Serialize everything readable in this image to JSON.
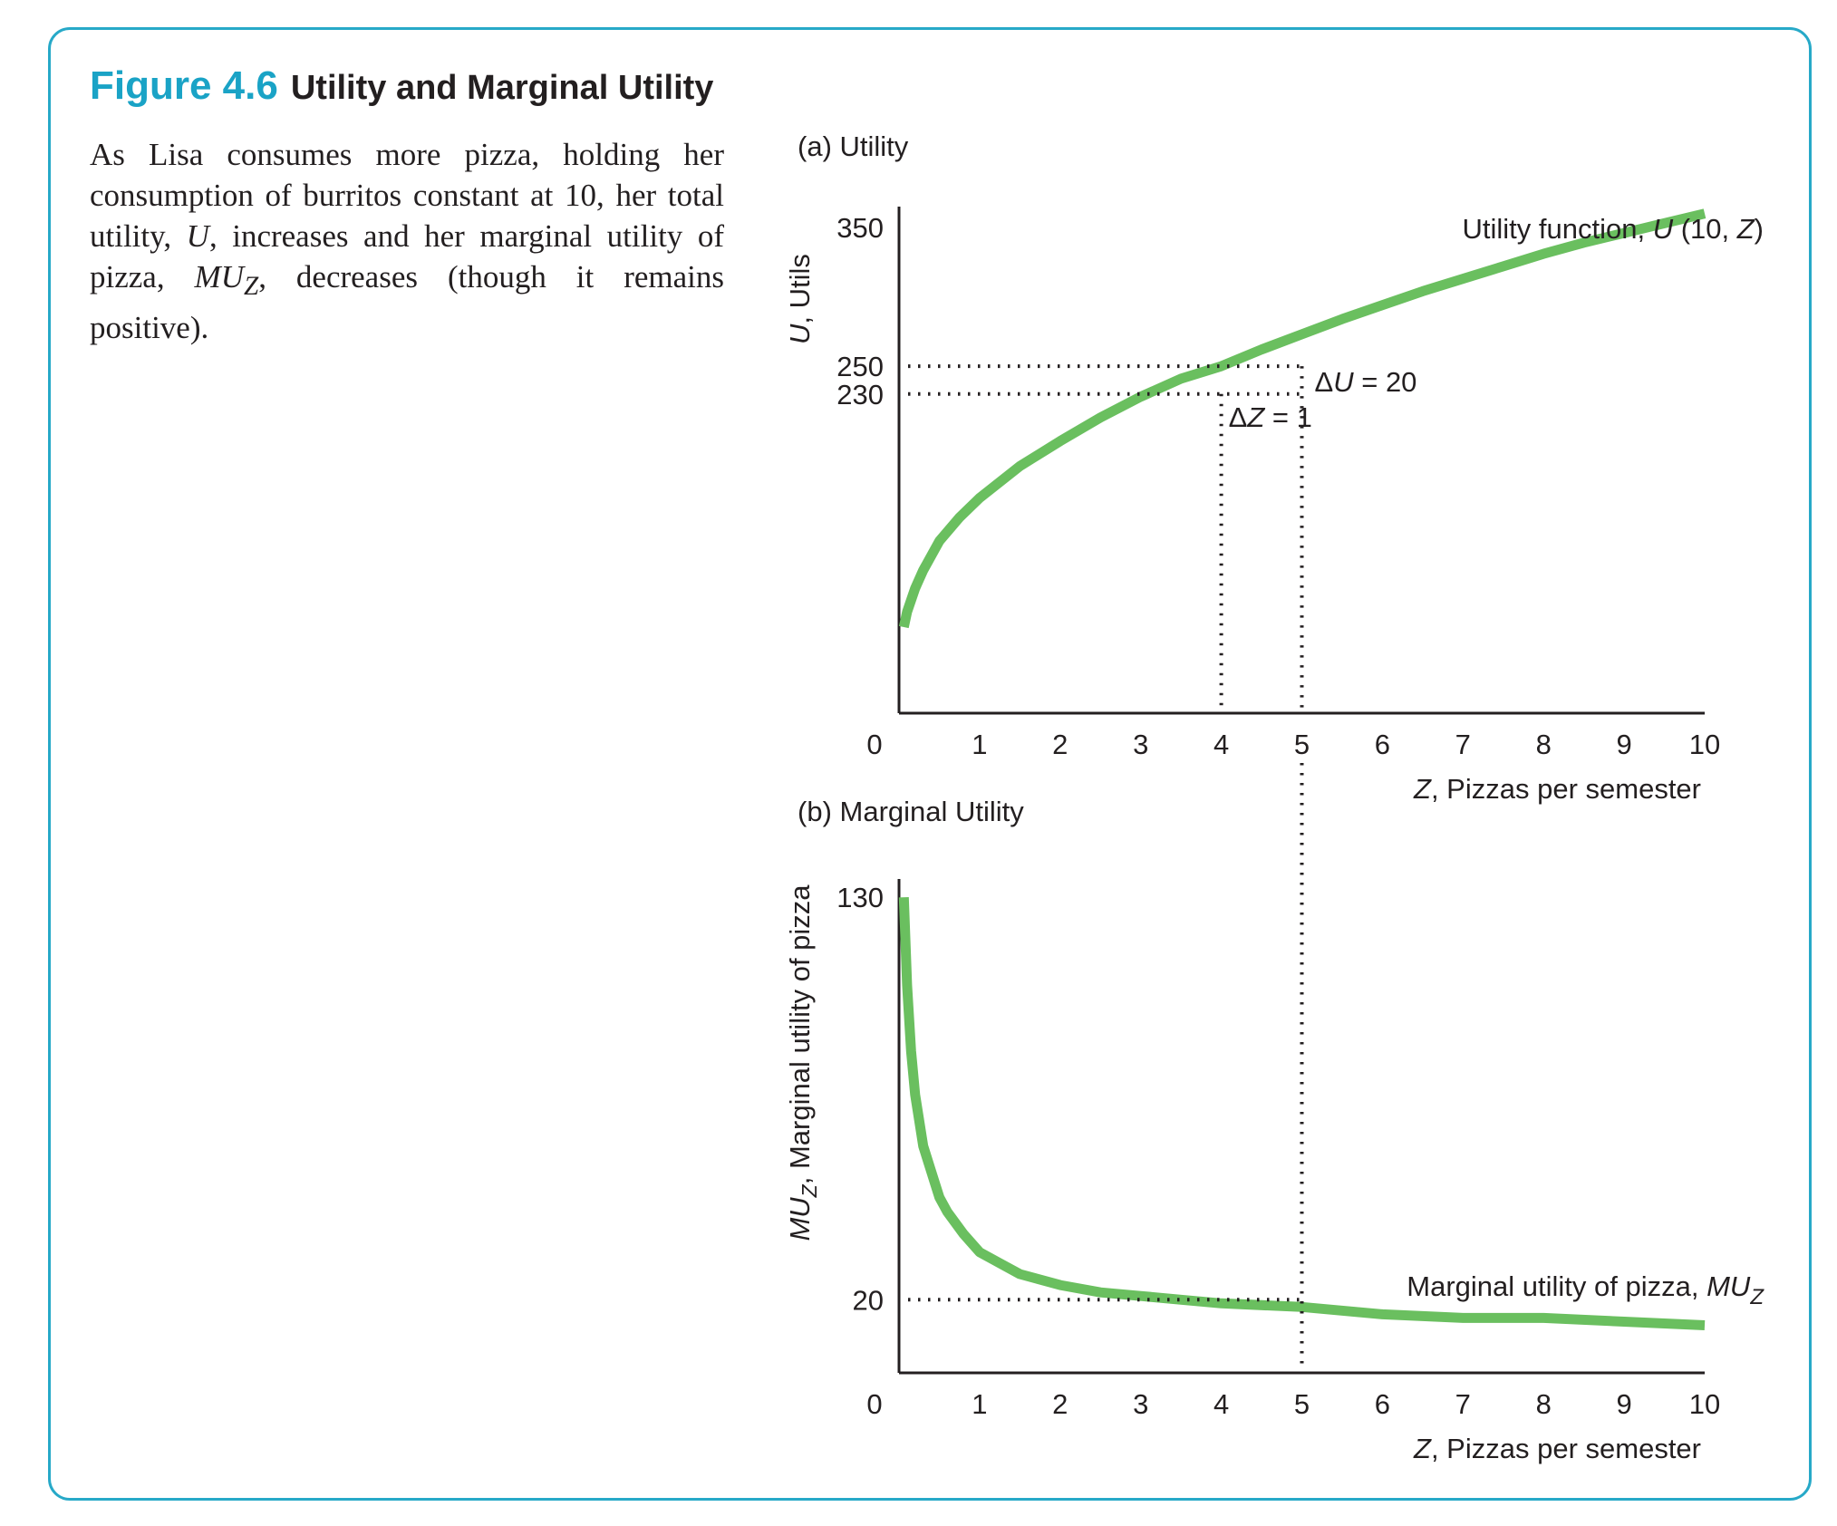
{
  "figure": {
    "number": "Figure 4.6",
    "title": "Utility and Marginal Utility",
    "caption": [
      "As Lisa consumes more pizza, holding her consumption of burritos constant at 10, her total utility, ",
      "U",
      ", increases and her marginal utility of pizza, ",
      "MU",
      "Z",
      ", decreases (though it remains positive)."
    ]
  },
  "colors": {
    "frame": "#27a9c8",
    "figure_number": "#1aa3c6",
    "curve": "#6abf5f",
    "text": "#231f20"
  },
  "chart_data": [
    {
      "type": "line",
      "panel_label": "(a) Utility",
      "ylabel": {
        "italic": "U",
        "rest": ", Utils"
      },
      "xlabel": {
        "italic": "Z",
        "rest": ", Pizzas per semester"
      },
      "origin_label": "0",
      "x_ticks": [
        "1",
        "2",
        "3",
        "4",
        "5",
        "6",
        "7",
        "8",
        "9",
        "10"
      ],
      "y_ticks": [
        {
          "value": 350,
          "label": "350"
        },
        {
          "value": 250,
          "label": "250"
        },
        {
          "value": 230,
          "label": "230"
        }
      ],
      "xlim": [
        0,
        10
      ],
      "ylim": [
        0,
        365
      ],
      "series": [
        {
          "name": "Utility function, U (10, Z)",
          "x": [
            0.06,
            0.1,
            0.2,
            0.3,
            0.5,
            0.75,
            1,
            1.5,
            2,
            2.5,
            3,
            3.5,
            4,
            4.5,
            5,
            5.5,
            6,
            6.5,
            7,
            7.5,
            8,
            8.5,
            9,
            9.5,
            10
          ],
          "y": [
            62,
            73,
            90,
            103,
            124,
            141,
            155,
            178,
            196,
            213,
            228,
            241,
            250,
            262,
            273,
            284,
            294,
            304,
            313,
            322,
            331,
            339,
            346,
            353,
            360
          ]
        }
      ],
      "series_label": [
        {
          "t": "Utility function, ",
          "i": false
        },
        {
          "t": "U",
          "i": true
        },
        {
          "t": " (10, ",
          "i": false
        },
        {
          "t": "Z",
          "i": true
        },
        {
          "t": ")",
          "i": false
        }
      ],
      "annotations": {
        "delta_u": {
          "delta": "Δ",
          "var": "U",
          "text": " = 20"
        },
        "delta_z": {
          "delta": "Δ",
          "var": "Z",
          "text": " = 1"
        }
      }
    },
    {
      "type": "line",
      "panel_label": "(b) Marginal Utility",
      "ylabel": {
        "italic": "MU",
        "sub": "Z",
        "rest": ", Marginal utility of pizza"
      },
      "xlabel": {
        "italic": "Z",
        "rest": ", Pizzas per semester"
      },
      "origin_label": "0",
      "x_ticks": [
        "1",
        "2",
        "3",
        "4",
        "5",
        "6",
        "7",
        "8",
        "9",
        "10"
      ],
      "y_ticks": [
        {
          "value": 130,
          "label": "130"
        },
        {
          "value": 20,
          "label": "20"
        }
      ],
      "xlim": [
        0,
        10
      ],
      "ylim": [
        0,
        135
      ],
      "series": [
        {
          "name": "Marginal utility of pizza, MUZ",
          "x": [
            0.06,
            0.1,
            0.15,
            0.2,
            0.3,
            0.4,
            0.5,
            0.6,
            0.8,
            1,
            1.25,
            1.5,
            2,
            2.5,
            3,
            3.5,
            4,
            5,
            6,
            7,
            8,
            9,
            10
          ],
          "y": [
            130,
            106,
            88,
            76,
            62,
            55,
            48,
            44,
            38,
            33,
            30,
            27,
            24,
            22,
            21,
            20,
            19,
            18,
            16,
            15,
            15,
            14,
            13
          ]
        }
      ],
      "series_label": [
        {
          "t": "Marginal utility of pizza, ",
          "i": false
        },
        {
          "t": "MU",
          "i": true
        },
        {
          "t": "Z",
          "i": true,
          "sub": true
        }
      ]
    }
  ]
}
